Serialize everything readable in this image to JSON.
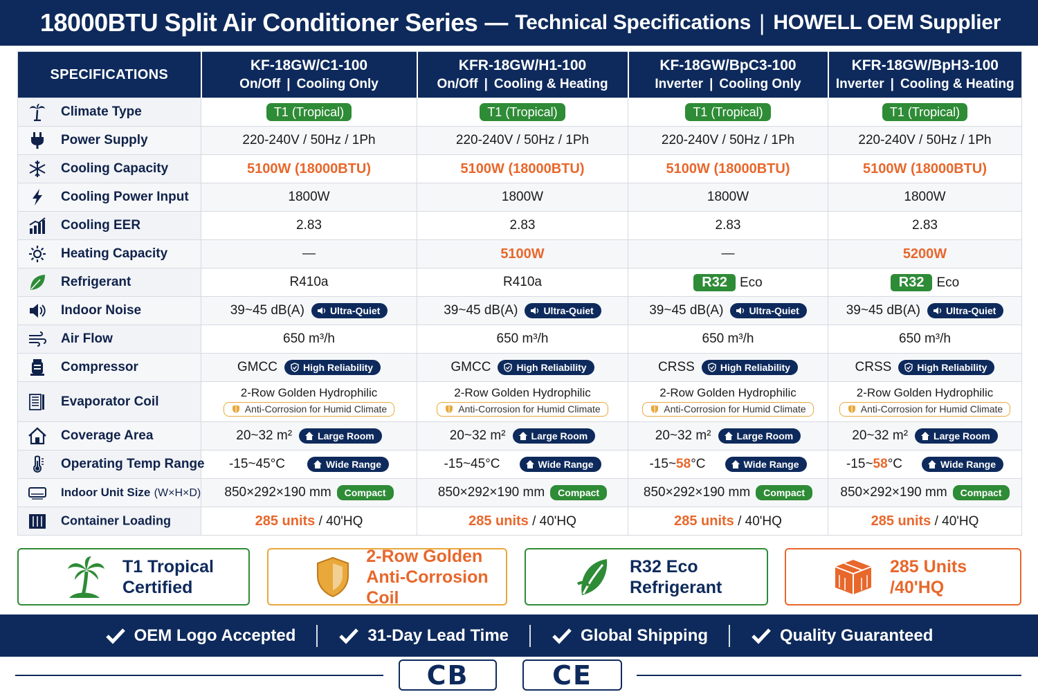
{
  "title": {
    "main": "18000BTU Split Air Conditioner Series",
    "dash": "—",
    "sub": "Technical Specifications",
    "separator": "|",
    "supplier": "HOWELL OEM Supplier"
  },
  "table": {
    "header_spec": "SPECIFICATIONS",
    "pipe": "|",
    "models": [
      {
        "model": "KF-18GW/C1-100",
        "mode": "On/Off",
        "function": "Cooling Only"
      },
      {
        "model": "KFR-18GW/H1-100",
        "mode": "On/Off",
        "function": "Cooling & Heating"
      },
      {
        "model": "KF-18GW/BpC3-100",
        "mode": "Inverter",
        "function": "Cooling Only"
      },
      {
        "model": "KFR-18GW/BpH3-100",
        "mode": "Inverter",
        "function": "Cooling & Heating"
      }
    ],
    "labels": {
      "climate": "Climate Type",
      "power": "Power Supply",
      "cooling_capacity": "Cooling Capacity",
      "cooling_input": "Cooling Power Input",
      "eer": "Cooling EER",
      "heating": "Heating Capacity",
      "refrigerant": "Refrigerant",
      "noise": "Indoor Noise",
      "airflow": "Air Flow",
      "compressor": "Compressor",
      "coil": "Evaporator Coil",
      "coverage": "Coverage Area",
      "temp": "Operating Temp Range",
      "size": "Indoor Unit Size",
      "size_suffix": "(W×H×D)",
      "loading": "Container Loading"
    },
    "badges": {
      "ultra_quiet": "Ultra-Quiet",
      "high_reliability": "High Reliability",
      "anti_corrosion": "Anti-Corrosion for Humid Climate",
      "large_room": "Large Room",
      "wide_range": "Wide Range",
      "compact": "Compact",
      "eco": "Eco"
    },
    "values": {
      "climate": "T1 (Tropical)",
      "power": "220-240V / 50Hz / 1Ph",
      "cooling_capacity": "5100W (18000BTU)",
      "cooling_input": "1800W",
      "eer": "2.83",
      "heating": [
        "—",
        "5100W",
        "—",
        "5200W"
      ],
      "refrigerant": [
        "R410a",
        "R410a",
        "R32",
        "R32"
      ],
      "noise": "39~45 dB(A)",
      "airflow": "650 m³/h",
      "compressor": [
        "GMCC",
        "GMCC",
        "CRSS",
        "CRSS"
      ],
      "coil": "2-Row Golden Hydrophilic",
      "coverage": "20~32 m²",
      "temp_low": "-15~",
      "temp_high": [
        "45",
        "45",
        "58",
        "58"
      ],
      "temp_unit": "°C",
      "size": "850×292×190 mm",
      "loading_units": "285 units",
      "loading_container": "/ 40'HQ"
    }
  },
  "features": [
    {
      "line1": "T1 Tropical",
      "line2": "Certified",
      "icon": "palm-tree-icon"
    },
    {
      "line1": "2-Row Golden",
      "line2": "Anti-Corrosion Coil",
      "icon": "shield-icon"
    },
    {
      "line1": "R32 Eco",
      "line2": "Refrigerant",
      "icon": "leaf-icon"
    },
    {
      "line1": "285 Units",
      "line2": "/40'HQ",
      "icon": "box-icon"
    }
  ],
  "bottom_bar": [
    "OEM Logo Accepted",
    "31-Day Lead Time",
    "Global Shipping",
    "Quality Guaranteed"
  ],
  "certifications": [
    "CB",
    "CE"
  ],
  "colors": {
    "navy": "#0e2a5c",
    "green": "#2e8b36",
    "orange": "#e8672b",
    "gold": "#e8a83a"
  }
}
